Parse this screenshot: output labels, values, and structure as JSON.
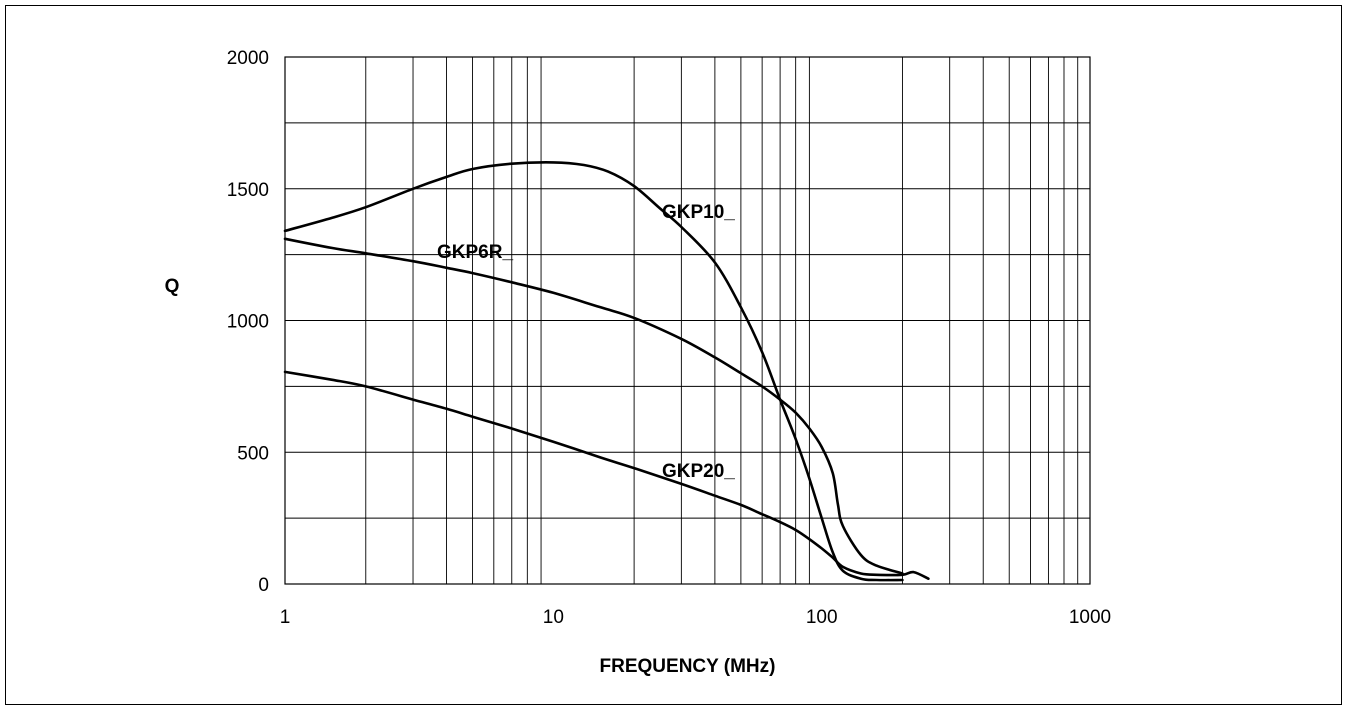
{
  "chart_data": {
    "type": "line",
    "title": "",
    "xlabel": "FREQUENCY (MHz)",
    "ylabel": "Q",
    "xscale": "log",
    "xlim": [
      1,
      1000
    ],
    "ylim": [
      0,
      2000
    ],
    "xticks": [
      "1",
      "10",
      "100",
      "1000"
    ],
    "yticks": [
      "0",
      "500",
      "1000",
      "1500",
      "2000"
    ],
    "grid": true,
    "legend": "none (series labeled directly on curves)",
    "line_color": "#000000",
    "series": [
      {
        "name": "GKP10_",
        "x": [
          1,
          1.5,
          2,
          3,
          4,
          5,
          7,
          10,
          13,
          16,
          20,
          25,
          30,
          40,
          50,
          60,
          70,
          80,
          90,
          100,
          110,
          120,
          140,
          160,
          200
        ],
        "y": [
          1340,
          1390,
          1430,
          1500,
          1545,
          1575,
          1595,
          1600,
          1590,
          1565,
          1510,
          1425,
          1355,
          1220,
          1050,
          880,
          700,
          550,
          400,
          250,
          120,
          50,
          20,
          15,
          15
        ]
      },
      {
        "name": "GKP6R_",
        "x": [
          1,
          1.5,
          2,
          3,
          4,
          5,
          7,
          10,
          15,
          20,
          30,
          40,
          50,
          60,
          70,
          80,
          90,
          100,
          110,
          115,
          120,
          140,
          160,
          200
        ],
        "y": [
          1310,
          1275,
          1255,
          1225,
          1200,
          1180,
          1145,
          1105,
          1050,
          1010,
          930,
          860,
          800,
          750,
          700,
          650,
          590,
          520,
          420,
          300,
          220,
          110,
          70,
          40
        ]
      },
      {
        "name": "GKP20_",
        "x": [
          1,
          1.5,
          2,
          3,
          4,
          5,
          7,
          10,
          15,
          20,
          30,
          40,
          50,
          60,
          70,
          80,
          90,
          100,
          110,
          120,
          140,
          160,
          200,
          220,
          250
        ],
        "y": [
          805,
          775,
          750,
          700,
          665,
          635,
          590,
          540,
          480,
          440,
          380,
          335,
          300,
          265,
          235,
          205,
          170,
          135,
          100,
          65,
          40,
          35,
          35,
          45,
          20
        ]
      }
    ]
  }
}
